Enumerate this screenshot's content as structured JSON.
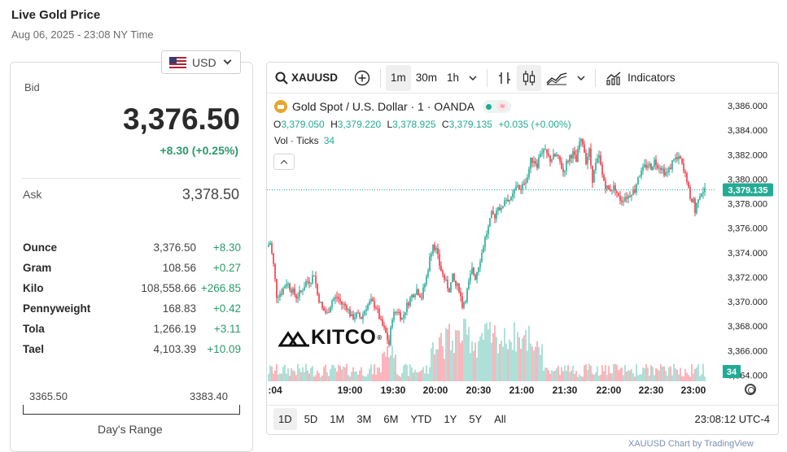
{
  "page": {
    "title": "Live Gold Price",
    "subtitle": "Aug 06, 2025 - 23:08 NY Time"
  },
  "currency": {
    "label": "USD",
    "icon": "us-flag-icon"
  },
  "quote": {
    "bid_label": "Bid",
    "bid": "3,376.50",
    "change": "+8.30 (+0.25%)",
    "ask_label": "Ask",
    "ask": "3,378.50"
  },
  "units": [
    {
      "name": "Ounce",
      "value": "3,376.50",
      "change": "+8.30"
    },
    {
      "name": "Gram",
      "value": "108.56",
      "change": "+0.27"
    },
    {
      "name": "Kilo",
      "value": "108,558.66",
      "change": "+266.85"
    },
    {
      "name": "Pennyweight",
      "value": "168.83",
      "change": "+0.42"
    },
    {
      "name": "Tola",
      "value": "1,266.19",
      "change": "+3.11"
    },
    {
      "name": "Tael",
      "value": "4,103.39",
      "change": "+10.09"
    }
  ],
  "range": {
    "low": "3365.50",
    "high": "3383.40",
    "label": "Day's Range"
  },
  "toolbar": {
    "symbol": "XAUUSD",
    "intervals": [
      "1m",
      "30m",
      "1h"
    ],
    "active_interval": "1m",
    "indicators_label": "Indicators"
  },
  "legend": {
    "title": "Gold Spot / U.S. Dollar · 1 · OANDA",
    "o_label": "O",
    "o": "3,379.050",
    "h_label": "H",
    "h": "3,379.220",
    "l_label": "L",
    "l": "3,378.925",
    "c_label": "C",
    "c": "3,379.135",
    "change": "+0.035 (+0.00%)",
    "vol_label": "Vol · Ticks",
    "vol": "34"
  },
  "ranges": [
    "1D",
    "5D",
    "1M",
    "3M",
    "6M",
    "YTD",
    "1Y",
    "5Y",
    "All"
  ],
  "active_range": "1D",
  "clock": "23:08:12 UTC-4",
  "watermark": "KITCO",
  "footer_link": "XAUUSD Chart by TradingView",
  "colors": {
    "up": "#22ab94",
    "down": "#f23645",
    "accent": "#2c9a6c"
  },
  "chart_data": {
    "type": "candlestick",
    "symbol": "XAUUSD",
    "x_tick_labels": [
      ":04",
      "19:00",
      "19:30",
      "20:00",
      "20:30",
      "21:00",
      "21:30",
      "22:00",
      "22:30",
      "23:00"
    ],
    "y_tick_labels": [
      "3,386.000",
      "3,384.000",
      "3,382.000",
      "3,380.000",
      "3,378.000",
      "3,376.000",
      "3,374.000",
      "3,372.000",
      "3,370.000",
      "3,368.000",
      "3,366.000",
      "3,364.000"
    ],
    "ylim": [
      3363.5,
      3386.4
    ],
    "last_price_label": "3,379.135",
    "last_price": 3379.135,
    "last_volume_label": "34",
    "close_path": [
      [
        0,
        3374.5
      ],
      [
        4,
        3374.8
      ],
      [
        8,
        3373.0
      ],
      [
        12,
        3370.5
      ],
      [
        18,
        3370.8
      ],
      [
        24,
        3371.6
      ],
      [
        30,
        3371.0
      ],
      [
        36,
        3370.4
      ],
      [
        42,
        3370.8
      ],
      [
        48,
        3371.6
      ],
      [
        54,
        3371.8
      ],
      [
        58,
        3372.3
      ],
      [
        62,
        3370.6
      ],
      [
        68,
        3369.4
      ],
      [
        74,
        3369.0
      ],
      [
        80,
        3370.1
      ],
      [
        86,
        3370.4
      ],
      [
        92,
        3369.8
      ],
      [
        98,
        3369.6
      ],
      [
        104,
        3368.7
      ],
      [
        110,
        3368.9
      ],
      [
        116,
        3368.7
      ],
      [
        122,
        3369.6
      ],
      [
        128,
        3370.0
      ],
      [
        134,
        3369.6
      ],
      [
        140,
        3368.3
      ],
      [
        146,
        3367.4
      ],
      [
        150,
        3366.5
      ],
      [
        154,
        3368.8
      ],
      [
        160,
        3369.3
      ],
      [
        166,
        3368.6
      ],
      [
        172,
        3369.7
      ],
      [
        178,
        3370.5
      ],
      [
        184,
        3371.0
      ],
      [
        190,
        3370.4
      ],
      [
        196,
        3372.0
      ],
      [
        200,
        3373.5
      ],
      [
        204,
        3374.8
      ],
      [
        208,
        3374.2
      ],
      [
        212,
        3373.0
      ],
      [
        216,
        3372.2
      ],
      [
        220,
        3371.5
      ],
      [
        224,
        3371.0
      ],
      [
        228,
        3372.0
      ],
      [
        232,
        3371.3
      ],
      [
        236,
        3371.1
      ],
      [
        240,
        3369.7
      ],
      [
        244,
        3370.3
      ],
      [
        248,
        3371.5
      ],
      [
        252,
        3372.6
      ],
      [
        256,
        3372.0
      ],
      [
        260,
        3373.0
      ],
      [
        264,
        3374.0
      ],
      [
        268,
        3375.2
      ],
      [
        272,
        3376.0
      ],
      [
        276,
        3377.1
      ],
      [
        280,
        3377.0
      ],
      [
        284,
        3377.9
      ],
      [
        288,
        3377.4
      ],
      [
        292,
        3378.4
      ],
      [
        296,
        3378.4
      ],
      [
        300,
        3378.3
      ],
      [
        304,
        3379.0
      ],
      [
        308,
        3379.6
      ],
      [
        312,
        3379.0
      ],
      [
        316,
        3379.8
      ],
      [
        320,
        3380.2
      ],
      [
        324,
        3381.5
      ],
      [
        328,
        3381.6
      ],
      [
        332,
        3381.2
      ],
      [
        336,
        3382.2
      ],
      [
        340,
        3382.3
      ],
      [
        344,
        3382.0
      ],
      [
        348,
        3381.6
      ],
      [
        352,
        3381.8
      ],
      [
        356,
        3381.9
      ],
      [
        360,
        3381.4
      ],
      [
        364,
        3380.6
      ],
      [
        368,
        3381.3
      ],
      [
        372,
        3381.9
      ],
      [
        376,
        3382.1
      ],
      [
        380,
        3381.4
      ],
      [
        384,
        3383.0
      ],
      [
        388,
        3383.0
      ],
      [
        392,
        3381.5
      ],
      [
        396,
        3382.3
      ],
      [
        400,
        3380.0
      ],
      [
        404,
        3381.2
      ],
      [
        408,
        3381.8
      ],
      [
        412,
        3380.3
      ],
      [
        416,
        3379.5
      ],
      [
        420,
        3379.1
      ],
      [
        424,
        3379.3
      ],
      [
        428,
        3379.3
      ],
      [
        432,
        3378.5
      ],
      [
        436,
        3378.3
      ],
      [
        440,
        3378.6
      ],
      [
        444,
        3378.6
      ],
      [
        448,
        3379.0
      ],
      [
        452,
        3379.1
      ],
      [
        456,
        3380.3
      ],
      [
        460,
        3380.5
      ],
      [
        464,
        3381.0
      ],
      [
        468,
        3381.2
      ],
      [
        472,
        3381.0
      ],
      [
        476,
        3381.5
      ],
      [
        480,
        3381.2
      ],
      [
        484,
        3381.0
      ],
      [
        488,
        3380.6
      ],
      [
        492,
        3380.5
      ],
      [
        496,
        3381.0
      ],
      [
        500,
        3381.8
      ],
      [
        504,
        3381.6
      ],
      [
        508,
        3381.6
      ],
      [
        512,
        3380.6
      ],
      [
        516,
        3380.0
      ],
      [
        520,
        3378.2
      ],
      [
        524,
        3378.4
      ],
      [
        526,
        3377.3
      ],
      [
        530,
        3378.6
      ],
      [
        534,
        3379.0
      ],
      [
        538,
        3379.135
      ]
    ]
  }
}
